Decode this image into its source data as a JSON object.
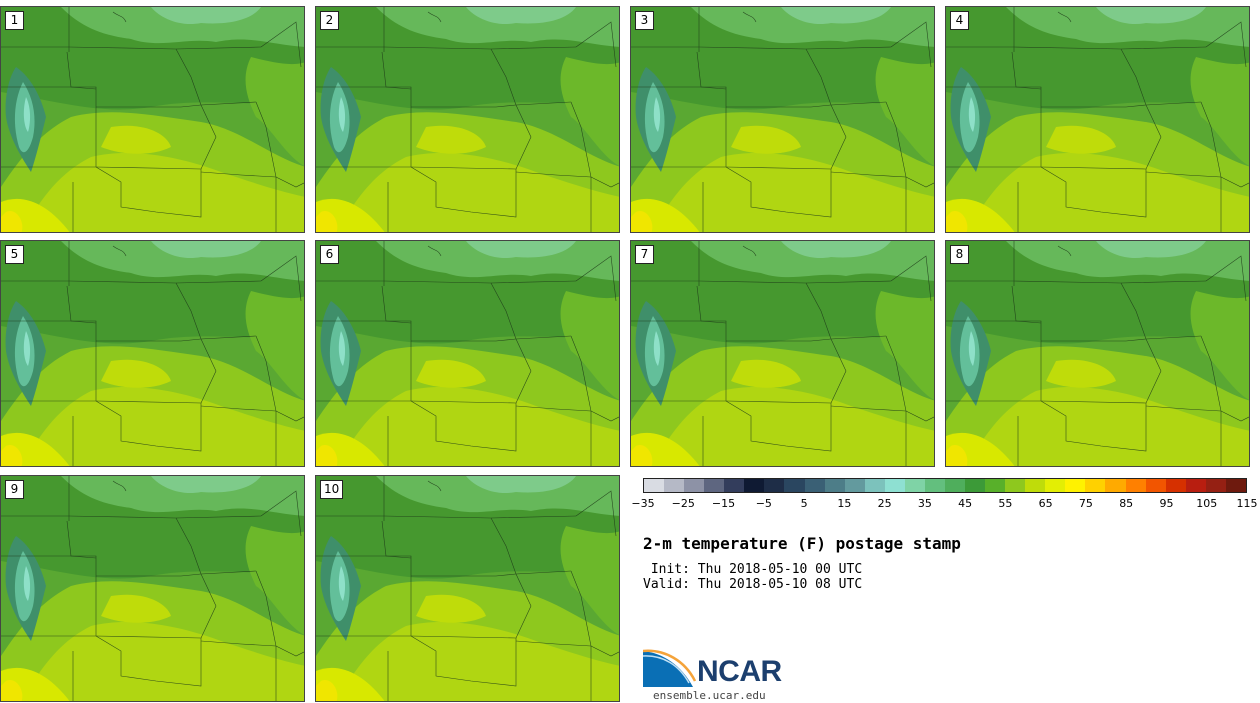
{
  "panels": [
    {
      "label": "1"
    },
    {
      "label": "2"
    },
    {
      "label": "3"
    },
    {
      "label": "4"
    },
    {
      "label": "5"
    },
    {
      "label": "6"
    },
    {
      "label": "7"
    },
    {
      "label": "8"
    },
    {
      "label": "9"
    },
    {
      "label": "10"
    }
  ],
  "colorbar": {
    "colors": [
      "#d9dce3",
      "#b5b9c6",
      "#8d92a6",
      "#5e6680",
      "#333d5c",
      "#0f1a33",
      "#1e2d47",
      "#2a4660",
      "#3a6075",
      "#4d7d88",
      "#639a9e",
      "#7cc2bc",
      "#8ee0d2",
      "#7fd3a6",
      "#63bf7e",
      "#4fae5c",
      "#3c9a38",
      "#58b02a",
      "#8ec81e",
      "#bfdc0a",
      "#e3ee04",
      "#fff200",
      "#ffd100",
      "#ffaa00",
      "#ff8000",
      "#f25500",
      "#d63000",
      "#b81e10",
      "#952013",
      "#6e1a0e"
    ],
    "tick_labels": [
      "−35",
      "−25",
      "−15",
      "−5",
      "5",
      "15",
      "25",
      "35",
      "45",
      "55",
      "65",
      "75",
      "85",
      "95",
      "105",
      "115"
    ]
  },
  "title": "2-m temperature (F) postage stamp",
  "init": " Init: Thu 2018-05-10 00 UTC",
  "valid": "Valid: Thu 2018-05-10 08 UTC",
  "logo": {
    "text": "NCAR",
    "site": "ensemble.ucar.edu"
  }
}
